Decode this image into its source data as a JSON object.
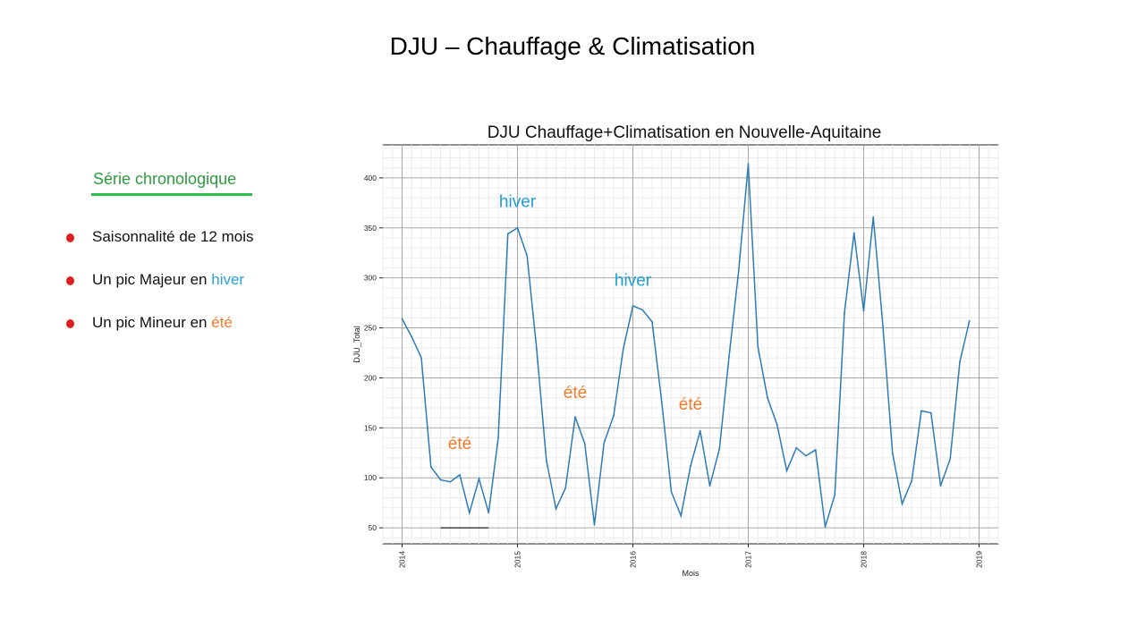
{
  "slide": {
    "title": "DJU – Chauffage & Climatisation"
  },
  "sidebar": {
    "heading": "Série chronologique",
    "heading_color": "#2e9b3e",
    "bullets": [
      {
        "prefix": "Saisonnalité de 12 mois",
        "highlight": "",
        "highlight_type": ""
      },
      {
        "prefix": "Un pic Majeur en ",
        "highlight": "hiver",
        "highlight_type": "hiver"
      },
      {
        "prefix": "Un pic Mineur en ",
        "highlight": "été",
        "highlight_type": "ete"
      }
    ],
    "bullet_color": "#e02020"
  },
  "chart_data": {
    "type": "line",
    "title": "DJU Chauffage+Climatisation en Nouvelle-Aquitaine",
    "xlabel": "Mois",
    "ylabel": "DJU_Total",
    "x_ticks": [
      "2014",
      "2015",
      "2016",
      "2017",
      "2018",
      "2019"
    ],
    "y_ticks": [
      50,
      100,
      150,
      200,
      250,
      300,
      350,
      400
    ],
    "xlim": [
      "2013-11",
      "2019-03"
    ],
    "ylim": [
      34,
      433
    ],
    "grid": true,
    "line_color": "#2f7bb6",
    "x": [
      "2014-01",
      "2014-02",
      "2014-03",
      "2014-04",
      "2014-05",
      "2014-06",
      "2014-07",
      "2014-08",
      "2014-09",
      "2014-10",
      "2014-11",
      "2014-12",
      "2015-01",
      "2015-02",
      "2015-03",
      "2015-04",
      "2015-05",
      "2015-06",
      "2015-07",
      "2015-08",
      "2015-09",
      "2015-10",
      "2015-11",
      "2015-12",
      "2016-01",
      "2016-02",
      "2016-03",
      "2016-04",
      "2016-05",
      "2016-06",
      "2016-07",
      "2016-08",
      "2016-09",
      "2016-10",
      "2016-11",
      "2016-12",
      "2017-01",
      "2017-02",
      "2017-03",
      "2017-04",
      "2017-05",
      "2017-06",
      "2017-07",
      "2017-08",
      "2017-09",
      "2017-10",
      "2017-11",
      "2017-12",
      "2018-01",
      "2018-02",
      "2018-03",
      "2018-04",
      "2018-05",
      "2018-06",
      "2018-07",
      "2018-08",
      "2018-09",
      "2018-10",
      "2018-11",
      "2018-12"
    ],
    "series": [
      {
        "values": [
          259,
          241,
          220,
          111,
          98,
          96,
          103,
          65,
          99,
          65,
          140,
          344,
          350,
          322,
          228,
          118,
          69,
          90,
          161,
          134,
          53,
          135,
          162,
          229,
          272,
          268,
          256,
          176,
          86,
          62,
          112,
          147,
          92,
          129,
          221,
          307,
          414,
          231,
          180,
          153,
          107,
          130,
          122,
          128,
          51,
          83,
          265,
          345,
          267,
          361,
          252,
          125,
          74,
          97,
          167,
          165,
          92,
          119,
          216,
          257
        ]
      }
    ],
    "annotations": [
      {
        "text": "hiver",
        "x": "2015-01",
        "y": 371,
        "color": "#1f9fd6"
      },
      {
        "text": "hiver",
        "x": "2016-01",
        "y": 292,
        "color": "#1f9fd6"
      },
      {
        "text": "été",
        "x": "2014-07",
        "y": 129,
        "color": "#f07b2a"
      },
      {
        "text": "été",
        "x": "2015-07",
        "y": 180,
        "color": "#f07b2a"
      },
      {
        "text": "été",
        "x": "2016-07",
        "y": 168,
        "color": "#f07b2a"
      }
    ],
    "reference_segments": [
      {
        "from": "2014-05",
        "to": "2014-10",
        "y": 50
      }
    ]
  }
}
